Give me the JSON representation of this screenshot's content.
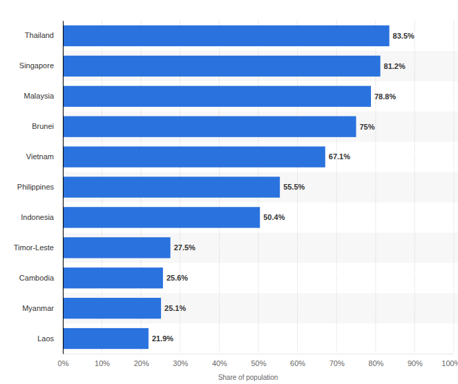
{
  "chart_data": {
    "type": "bar",
    "orientation": "horizontal",
    "categories": [
      "Thailand",
      "Singapore",
      "Malaysia",
      "Brunei",
      "Vietnam",
      "Philippines",
      "Indonesia",
      "Timor-Leste",
      "Cambodia",
      "Myanmar",
      "Laos"
    ],
    "values": [
      83.5,
      81.2,
      78.8,
      75,
      67.1,
      55.5,
      50.4,
      27.5,
      25.6,
      25.1,
      21.9
    ],
    "value_labels": [
      "83.5%",
      "81.2%",
      "78.8%",
      "75%",
      "67.1%",
      "55.5%",
      "50.4%",
      "27.5%",
      "25.6%",
      "25.1%",
      "21.9%"
    ],
    "data_labels": true,
    "color": "#2a72de",
    "xlabel": "Share of population",
    "xlim": [
      0,
      100
    ],
    "xticks": [
      {
        "value": 0,
        "label": "0%"
      },
      {
        "value": 10,
        "label": "10%"
      },
      {
        "value": 20,
        "label": "20%"
      },
      {
        "value": 30,
        "label": "30%"
      },
      {
        "value": 40,
        "label": "40%"
      },
      {
        "value": 50,
        "label": "50%"
      },
      {
        "value": 60,
        "label": "60%"
      },
      {
        "value": 70,
        "label": "70%"
      },
      {
        "value": 80,
        "label": "80%"
      },
      {
        "value": 90,
        "label": "90%"
      },
      {
        "value": 100,
        "label": "100%"
      }
    ],
    "grid": true
  }
}
